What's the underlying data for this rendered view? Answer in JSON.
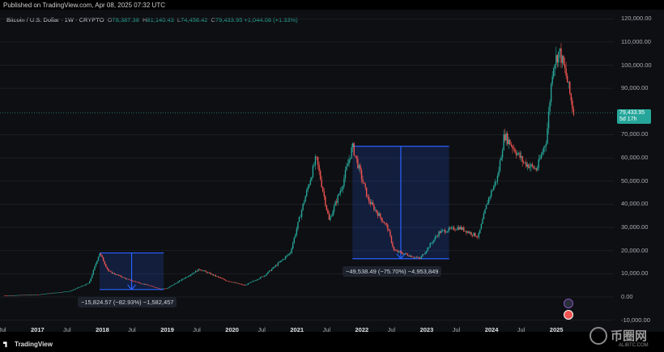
{
  "header": {
    "published": "Published on TradingView.com, Apr 08, 2025 07:32 UTC"
  },
  "legend": {
    "symbol": "Bitcoin / U.S. Dollar · 1W · CRYPTO",
    "o_label": "O",
    "o_value": "78,387.38",
    "h_label": "H",
    "h_value": "81,140.43",
    "l_label": "L",
    "l_value": "74,458.42",
    "c_label": "C",
    "c_value": "79,433.95",
    "change": "+1,044.08 (+1.33%)"
  },
  "price_tag": {
    "price": "79,433.95",
    "countdown": "5d 17h"
  },
  "yaxis": {
    "ticks": [
      "120,000.00",
      "110,000.00",
      "100,000.00",
      "90,000.00",
      "70,000.00",
      "60,000.00",
      "50,000.00",
      "40,000.00",
      "30,000.00",
      "20,000.00",
      "10,000.00",
      "0.00",
      "-10,000.00"
    ]
  },
  "xaxis": {
    "ticks": [
      {
        "label": "Jul",
        "bold": false
      },
      {
        "label": "2017",
        "bold": true
      },
      {
        "label": "Jul",
        "bold": false
      },
      {
        "label": "2018",
        "bold": true
      },
      {
        "label": "Jul",
        "bold": false
      },
      {
        "label": "2019",
        "bold": true
      },
      {
        "label": "Jul",
        "bold": false
      },
      {
        "label": "2020",
        "bold": true
      },
      {
        "label": "Jul",
        "bold": false
      },
      {
        "label": "2021",
        "bold": true
      },
      {
        "label": "Jul",
        "bold": false
      },
      {
        "label": "2022",
        "bold": true
      },
      {
        "label": "Jul",
        "bold": false
      },
      {
        "label": "2023",
        "bold": true
      },
      {
        "label": "Jul",
        "bold": false
      },
      {
        "label": "2024",
        "bold": true
      },
      {
        "label": "Jul",
        "bold": false
      },
      {
        "label": "2025",
        "bold": true
      }
    ]
  },
  "measurements": [
    {
      "label": "−15,824.57 (−82.93%) −1,582,457"
    },
    {
      "label": "−49,538.49 (−75.70%) −4,953,849"
    }
  ],
  "footer": {
    "brand": "TradingView"
  },
  "watermark": {
    "text": "币圈网",
    "sub": "ALIBTC.COM"
  },
  "colors": {
    "up": "#26a69a",
    "down": "#ef5350",
    "measure": "#2962ff"
  },
  "chart_data": {
    "type": "candlestick",
    "price_ticks": [
      120000,
      110000,
      100000,
      90000,
      70000,
      60000,
      50000,
      40000,
      30000,
      20000,
      10000,
      0,
      -10000
    ],
    "series": [
      {
        "t": 2016.5,
        "p": 600
      },
      {
        "t": 2017.0,
        "p": 1000
      },
      {
        "t": 2017.5,
        "p": 2500
      },
      {
        "t": 2017.8,
        "p": 6000
      },
      {
        "t": 2017.96,
        "p": 19000
      },
      {
        "t": 2018.1,
        "p": 11000
      },
      {
        "t": 2018.4,
        "p": 7500
      },
      {
        "t": 2018.9,
        "p": 3500
      },
      {
        "t": 2019.0,
        "p": 3700
      },
      {
        "t": 2019.5,
        "p": 12000
      },
      {
        "t": 2019.9,
        "p": 7200
      },
      {
        "t": 2020.2,
        "p": 5000
      },
      {
        "t": 2020.5,
        "p": 9200
      },
      {
        "t": 2020.9,
        "p": 19000
      },
      {
        "t": 2021.1,
        "p": 40000
      },
      {
        "t": 2021.3,
        "p": 60000
      },
      {
        "t": 2021.5,
        "p": 33000
      },
      {
        "t": 2021.7,
        "p": 48000
      },
      {
        "t": 2021.86,
        "p": 65000
      },
      {
        "t": 2022.1,
        "p": 42000
      },
      {
        "t": 2022.4,
        "p": 30000
      },
      {
        "t": 2022.5,
        "p": 20000
      },
      {
        "t": 2022.9,
        "p": 16500
      },
      {
        "t": 2023.2,
        "p": 28000
      },
      {
        "t": 2023.5,
        "p": 30000
      },
      {
        "t": 2023.8,
        "p": 26000
      },
      {
        "t": 2023.95,
        "p": 42000
      },
      {
        "t": 2024.1,
        "p": 52000
      },
      {
        "t": 2024.2,
        "p": 70000
      },
      {
        "t": 2024.5,
        "p": 58000
      },
      {
        "t": 2024.7,
        "p": 55000
      },
      {
        "t": 2024.85,
        "p": 68000
      },
      {
        "t": 2024.95,
        "p": 100000
      },
      {
        "t": 2025.05,
        "p": 106000
      },
      {
        "t": 2025.15,
        "p": 96000
      },
      {
        "t": 2025.27,
        "p": 79433.95
      }
    ],
    "measure_ranges": [
      {
        "from_t": 2017.96,
        "to_t": 2018.95,
        "high": 19000,
        "low": 3200
      },
      {
        "from_t": 2021.86,
        "to_t": 2023.35,
        "high": 65000,
        "low": 16500
      }
    ]
  }
}
